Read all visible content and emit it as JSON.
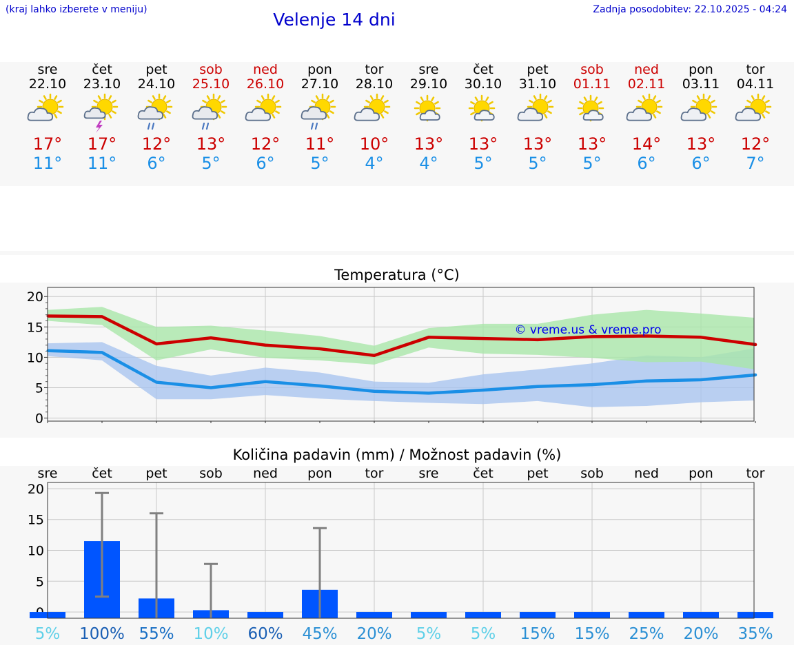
{
  "header": {
    "hint": "(kraj lahko izberete v meniju)",
    "title": "Velenje 14 dni",
    "updated": "Zadnja posodobitev: 22.10.2025 - 04:24"
  },
  "colors": {
    "tmax": "#cc0000",
    "tmin": "#1a8fe6",
    "weekend": "#cc0000",
    "max_band": "#a9e6a9",
    "min_band": "#a9c4ef",
    "bar": "#0055ff",
    "watermark": "#0000ee"
  },
  "forecast": [
    {
      "day": "sre",
      "date": "22.10",
      "weekend": false,
      "icon": "partly-cloudy-icon",
      "tmax": "17°",
      "tmin": "11°"
    },
    {
      "day": "čet",
      "date": "23.10",
      "weekend": false,
      "icon": "thunderstorm-icon",
      "tmax": "17°",
      "tmin": "11°"
    },
    {
      "day": "pet",
      "date": "24.10",
      "weekend": false,
      "icon": "rain-showers-icon",
      "tmax": "12°",
      "tmin": "6°"
    },
    {
      "day": "sob",
      "date": "25.10",
      "weekend": true,
      "icon": "rain-showers-icon",
      "tmax": "13°",
      "tmin": "5°"
    },
    {
      "day": "ned",
      "date": "26.10",
      "weekend": true,
      "icon": "partly-cloudy-icon",
      "tmax": "12°",
      "tmin": "6°"
    },
    {
      "day": "pon",
      "date": "27.10",
      "weekend": false,
      "icon": "rain-showers-icon",
      "tmax": "11°",
      "tmin": "5°"
    },
    {
      "day": "tor",
      "date": "28.10",
      "weekend": false,
      "icon": "partly-cloudy-icon",
      "tmax": "10°",
      "tmin": "4°"
    },
    {
      "day": "sre",
      "date": "29.10",
      "weekend": false,
      "icon": "mostly-sunny-icon",
      "tmax": "13°",
      "tmin": "4°"
    },
    {
      "day": "čet",
      "date": "30.10",
      "weekend": false,
      "icon": "mostly-sunny-icon",
      "tmax": "13°",
      "tmin": "5°"
    },
    {
      "day": "pet",
      "date": "31.10",
      "weekend": false,
      "icon": "partly-cloudy-icon",
      "tmax": "13°",
      "tmin": "5°"
    },
    {
      "day": "sob",
      "date": "01.11",
      "weekend": true,
      "icon": "mostly-sunny-icon",
      "tmax": "13°",
      "tmin": "5°"
    },
    {
      "day": "ned",
      "date": "02.11",
      "weekend": true,
      "icon": "partly-cloudy-icon",
      "tmax": "14°",
      "tmin": "6°"
    },
    {
      "day": "pon",
      "date": "03.11",
      "weekend": false,
      "icon": "partly-cloudy-icon",
      "tmax": "13°",
      "tmin": "6°"
    },
    {
      "day": "tor",
      "date": "04.11",
      "weekend": false,
      "icon": "partly-cloudy-icon",
      "tmax": "12°",
      "tmin": "7°"
    }
  ],
  "chart_data": [
    {
      "type": "line",
      "title": "Temperatura (°C)",
      "watermark": "© vreme.us & vreme.pro",
      "x": [
        0,
        1,
        2,
        3,
        4,
        5,
        6,
        7,
        8,
        9,
        10,
        11,
        12,
        13
      ],
      "ylim": [
        -0.5,
        21.5
      ],
      "yticks": [
        "0",
        "5",
        "10",
        "15",
        "20"
      ],
      "grid": true,
      "series": [
        {
          "name": "tmax",
          "values": [
            16.8,
            16.7,
            12.2,
            13.2,
            12.0,
            11.4,
            10.3,
            13.3,
            13.1,
            12.9,
            13.4,
            13.5,
            13.3,
            12.1
          ]
        },
        {
          "name": "tmin",
          "values": [
            11.1,
            10.8,
            5.9,
            5.0,
            6.0,
            5.3,
            4.4,
            4.1,
            4.6,
            5.2,
            5.5,
            6.1,
            6.3,
            7.1
          ]
        },
        {
          "name": "tmax_range_high",
          "values": [
            17.8,
            18.3,
            15.0,
            15.2,
            14.4,
            13.5,
            11.9,
            14.8,
            15.5,
            15.5,
            17.0,
            17.8,
            17.2,
            16.5
          ]
        },
        {
          "name": "tmax_range_low",
          "values": [
            16.0,
            15.3,
            9.5,
            11.3,
            9.9,
            9.5,
            8.8,
            11.6,
            10.6,
            10.4,
            9.9,
            9.2,
            9.3,
            8.0
          ]
        },
        {
          "name": "tmin_range_high",
          "values": [
            12.3,
            12.5,
            8.6,
            7.0,
            8.3,
            7.5,
            6.0,
            5.8,
            7.2,
            8.0,
            9.0,
            10.3,
            10.0,
            11.5
          ]
        },
        {
          "name": "tmin_range_low",
          "values": [
            10.2,
            9.5,
            3.1,
            3.1,
            3.8,
            3.2,
            2.8,
            2.5,
            2.3,
            2.8,
            1.8,
            2.0,
            2.6,
            2.9
          ]
        }
      ]
    },
    {
      "type": "bar",
      "title": "Količina padavin (mm) / Možnost padavin (%)",
      "categories": [
        "sre",
        "čet",
        "pet",
        "sob",
        "ned",
        "pon",
        "tor",
        "sre",
        "čet",
        "pet",
        "sob",
        "ned",
        "pon",
        "tor"
      ],
      "values": [
        0,
        11.5,
        2.2,
        0.3,
        0,
        3.6,
        0,
        0,
        0,
        0,
        0,
        0,
        0,
        0
      ],
      "error_low": [
        0,
        2.5,
        0,
        0,
        0,
        0,
        0,
        0,
        0,
        0,
        0,
        0,
        0,
        0
      ],
      "error_high": [
        0,
        19.3,
        16.0,
        7.8,
        0,
        13.6,
        0,
        0,
        0,
        0,
        0,
        0,
        0,
        0
      ],
      "probability": [
        "5%",
        "100%",
        "55%",
        "10%",
        "60%",
        "45%",
        "20%",
        "5%",
        "5%",
        "15%",
        "15%",
        "25%",
        "20%",
        "35%"
      ],
      "probability_colors": [
        "#5fd0e8",
        "#1a5fb4",
        "#1a6fc4",
        "#5fd0e8",
        "#1a5fb4",
        "#2a8fd4",
        "#2a8fd4",
        "#5fd0e8",
        "#5fd0e8",
        "#2a8fd4",
        "#2a8fd4",
        "#2a8fd4",
        "#2a8fd4",
        "#2a8fd4"
      ],
      "ylim": [
        -1,
        21
      ],
      "yticks": [
        "0",
        "5",
        "10",
        "15",
        "20"
      ],
      "grid": true
    }
  ]
}
